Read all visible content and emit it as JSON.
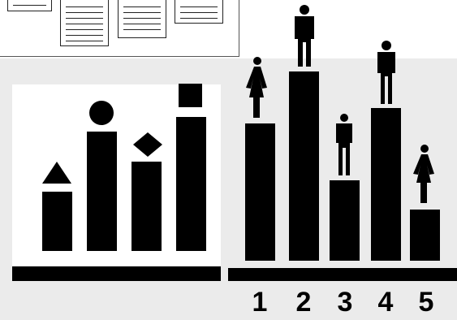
{
  "colors": {
    "background": "#ebebeb",
    "panel": "#ffffff",
    "ink": "#000000",
    "frame": "#555555"
  },
  "documents_panel": {
    "icon": "document-pages-icon",
    "pages": 4
  },
  "shapes_chart": {
    "icon": "bar-chart-with-shapes-icon",
    "bars": [
      {
        "shape": "triangle",
        "level": 0.37
      },
      {
        "shape": "circle",
        "level": 0.74
      },
      {
        "shape": "diamond",
        "level": 0.56
      },
      {
        "shape": "square",
        "level": 0.88
      }
    ]
  },
  "people_chart": {
    "icon": "podium-people-chart-icon",
    "bars": [
      {
        "label": "1",
        "figure": "woman",
        "level": 0.67
      },
      {
        "label": "2",
        "figure": "man",
        "level": 0.9
      },
      {
        "label": "3",
        "figure": "man",
        "level": 0.38
      },
      {
        "label": "4",
        "figure": "man",
        "level": 0.72
      },
      {
        "label": "5",
        "figure": "woman",
        "level": 0.24
      }
    ]
  }
}
